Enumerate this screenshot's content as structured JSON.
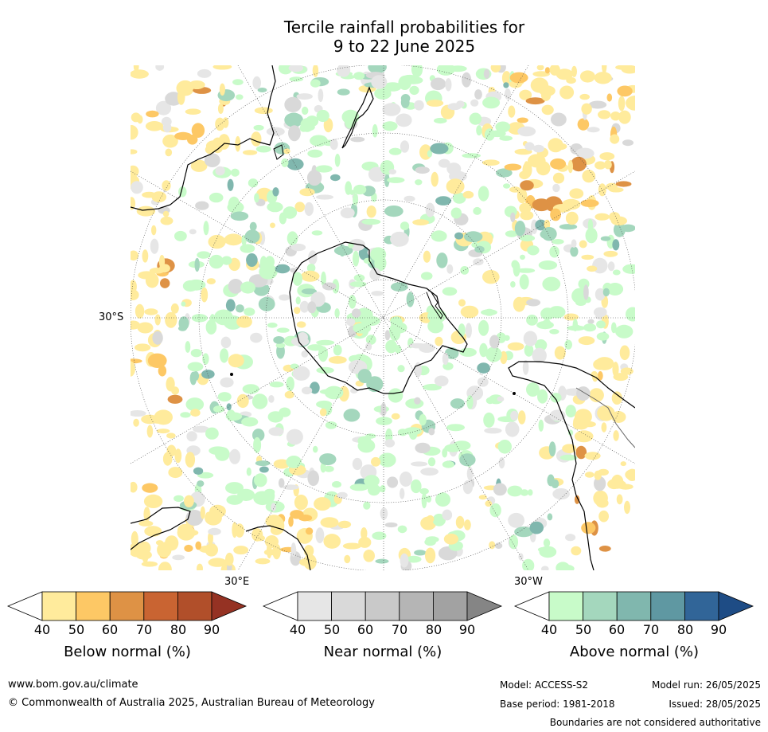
{
  "title": {
    "line1": "Tercile rainfall probabilities for",
    "line2": "9 to 22 June 2025"
  },
  "map": {
    "projection": "south-polar-stereographic",
    "lat_label": "30°S",
    "lon_labels": [
      "30°E",
      "30°W"
    ]
  },
  "colorbars": [
    {
      "label": "Below normal (%)",
      "ticks": [
        "40",
        "50",
        "60",
        "70",
        "80",
        "90"
      ],
      "colors": [
        "#ffffff",
        "#ffeb9c",
        "#fdc865",
        "#de9245",
        "#c96432",
        "#b14f2a",
        "#953223"
      ]
    },
    {
      "label": "Near normal (%)",
      "ticks": [
        "40",
        "50",
        "60",
        "70",
        "80",
        "90"
      ],
      "colors": [
        "#ffffff",
        "#e6e6e6",
        "#d9d9d9",
        "#c9c9c9",
        "#b5b5b5",
        "#a2a2a2",
        "#858585"
      ]
    },
    {
      "label": "Above normal (%)",
      "ticks": [
        "40",
        "50",
        "60",
        "70",
        "80",
        "90"
      ],
      "colors": [
        "#ffffff",
        "#c8fbc9",
        "#a4d7bd",
        "#80b7ae",
        "#5f98a2",
        "#316598",
        "#1e4c85"
      ]
    }
  ],
  "footer": {
    "url": "www.bom.gov.au/climate",
    "copyright": "© Commonwealth of Australia 2025, Australian Bureau of Meteorology",
    "model": "Model: ACCESS-S2",
    "base_period": "Base period: 1981-2018",
    "model_run": "Model run: 26/05/2025",
    "issued": "Issued: 28/05/2025",
    "disclaimer": "Boundaries are not considered authoritative"
  }
}
